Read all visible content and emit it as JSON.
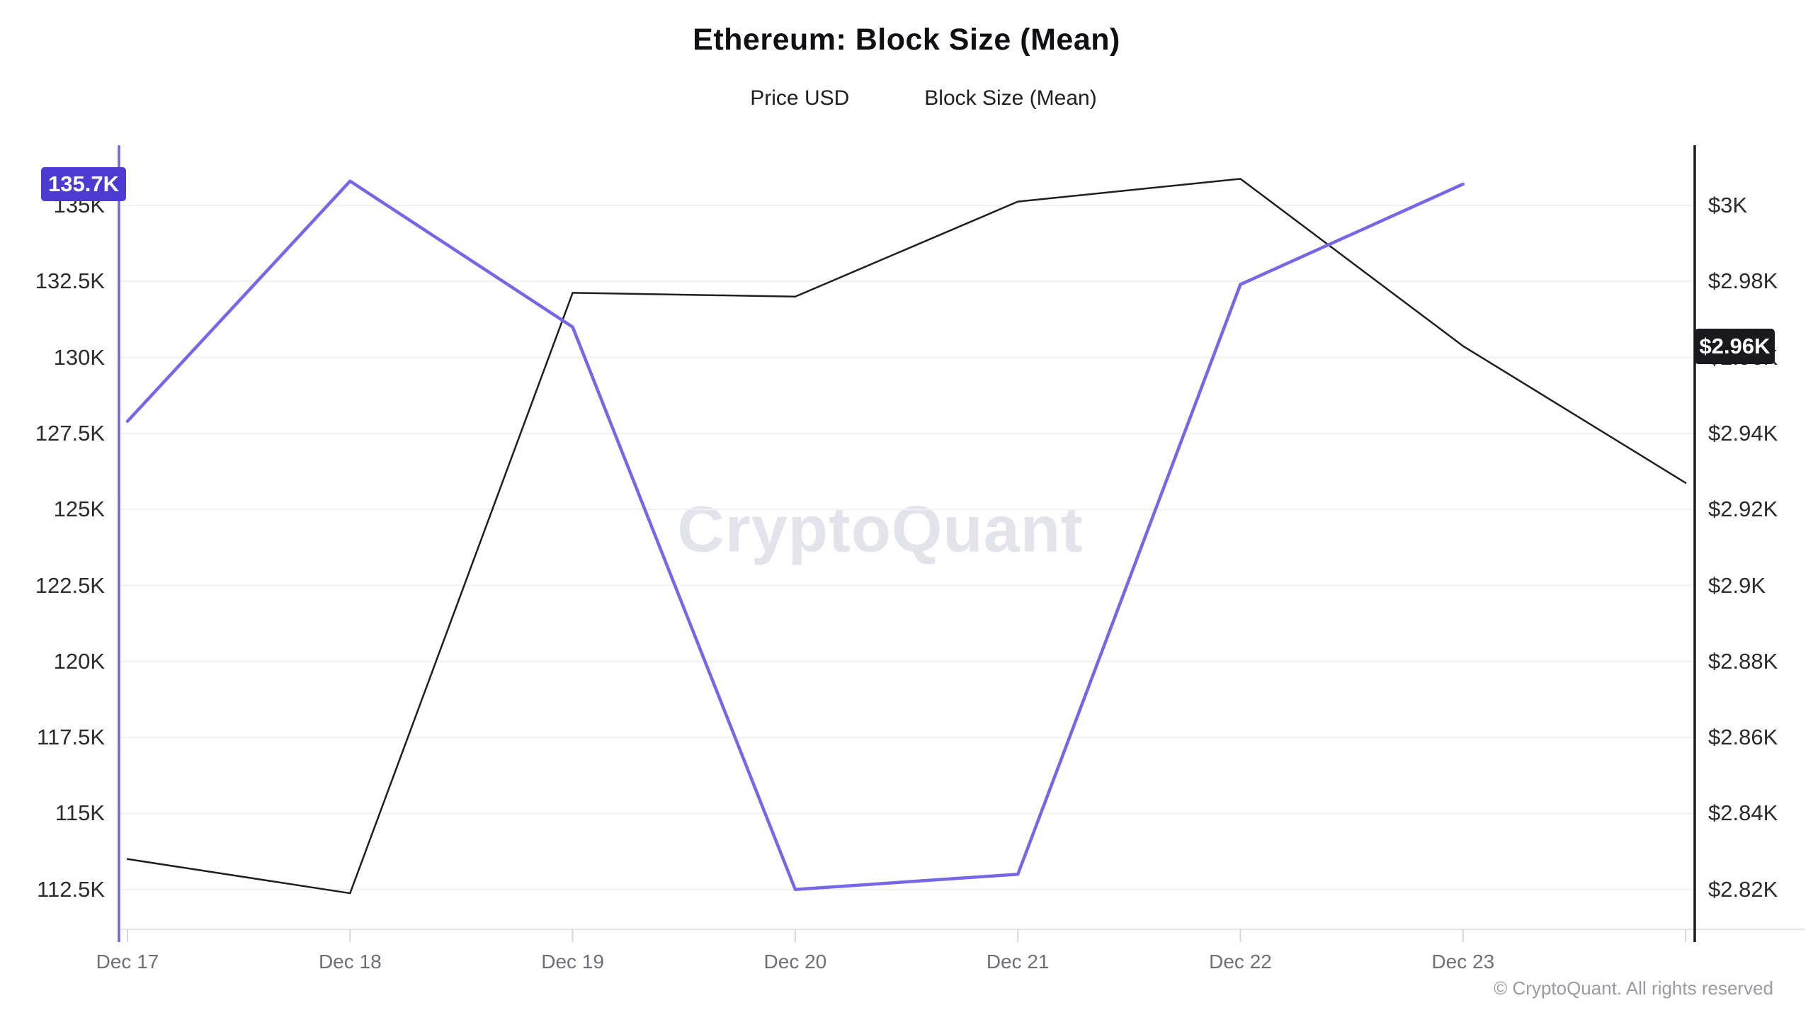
{
  "title": "Ethereum: Block Size (Mean)",
  "legend": [
    {
      "label": "Price USD",
      "color": "#2a2a2e"
    },
    {
      "label": "Block Size (Mean)",
      "color": "#8577ec"
    }
  ],
  "watermark": "CryptoQuant",
  "copyright": "© CryptoQuant. All rights reserved",
  "badges": {
    "block_size": {
      "text": "135.7K",
      "value": 135.7,
      "bg": "#4b3bd2",
      "fg": "#ffffff"
    },
    "price": {
      "text": "$2.96K",
      "value": 2.963,
      "bg": "#1a1a1e",
      "fg": "#ffffff"
    }
  },
  "chart_data": {
    "type": "line",
    "title": "Ethereum: Block Size (Mean)",
    "categories": [
      "Dec 17",
      "Dec 18",
      "Dec 19",
      "Dec 20",
      "Dec 21",
      "Dec 22",
      "Dec 23",
      ""
    ],
    "series": [
      {
        "name": "Price USD",
        "axis": "right",
        "color": "#1f1f23",
        "line_width": 2.5,
        "unit": "$K",
        "values": [
          2.828,
          2.819,
          2.977,
          2.976,
          3.001,
          3.007,
          2.963,
          2.927
        ]
      },
      {
        "name": "Block Size (Mean)",
        "axis": "left",
        "color": "#7767e8",
        "line_width": 4.5,
        "unit": "K",
        "values": [
          127.9,
          135.8,
          131.0,
          112.5,
          113.0,
          132.4,
          135.7,
          null
        ]
      }
    ],
    "left_axis": {
      "tick_values": [
        135,
        132.5,
        130,
        127.5,
        125,
        122.5,
        120,
        117.5,
        115,
        112.5
      ],
      "tick_labels": [
        "135K",
        "132.5K",
        "130K",
        "127.5K",
        "125K",
        "122.5K",
        "120K",
        "117.5K",
        "115K",
        "112.5K"
      ],
      "axis_color": "#7066e2",
      "label_color": "#2b2b30"
    },
    "right_axis": {
      "tick_values": [
        3.0,
        2.98,
        2.96,
        2.94,
        2.92,
        2.9,
        2.88,
        2.86,
        2.84,
        2.82
      ],
      "tick_labels": [
        "$3K",
        "$2.98K",
        "$2.96K",
        "$2.94K",
        "$2.92K",
        "$2.9K",
        "$2.88K",
        "$2.86K",
        "$2.84K",
        "$2.82K"
      ],
      "axis_color": "#1b1b1f",
      "label_color": "#2b2b30"
    },
    "grid": true,
    "grid_color": "#f1f1f4",
    "x_baseline_color": "#e4e4e9",
    "x_tick_color": "#d6d6de",
    "legend_position": "top",
    "ylim_left": [
      111.2,
      137.0
    ],
    "ylim_right": [
      2.81,
      3.016
    ]
  }
}
